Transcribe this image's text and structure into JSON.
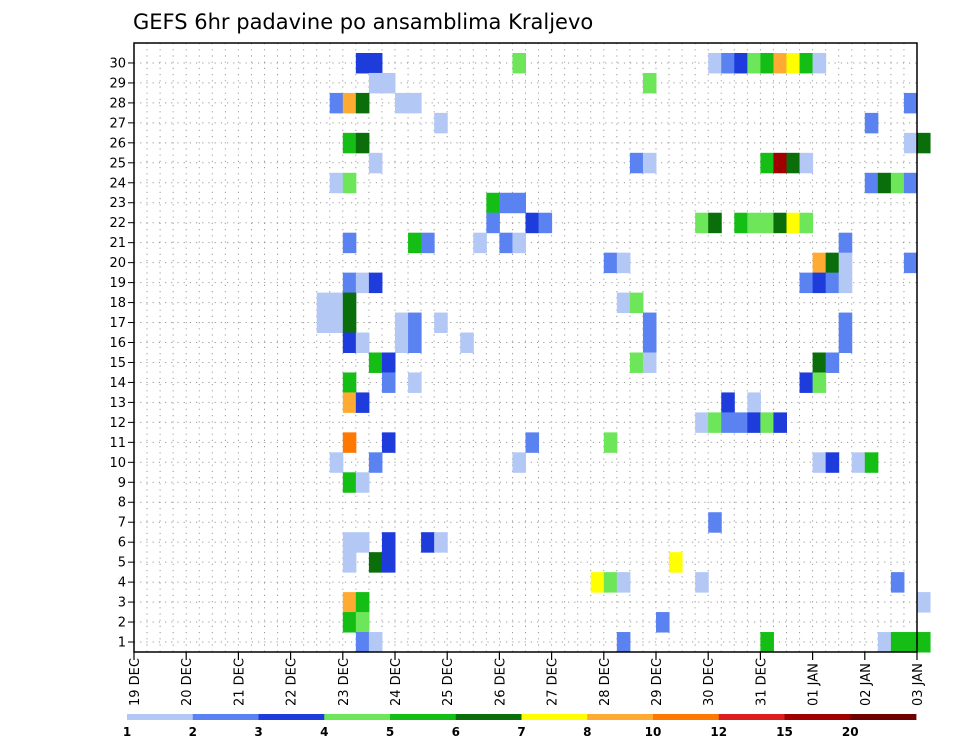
{
  "chart_data": {
    "type": "heatmap",
    "title": "GEFS 6hr padavine po ansamblima Kraljevo",
    "xlabel": "",
    "ylabel": "",
    "x_tick_labels": [
      "19 DEC",
      "20 DEC",
      "21 DEC",
      "22 DEC",
      "23 DEC",
      "24 DEC",
      "25 DEC",
      "26 DEC",
      "27 DEC",
      "28 DEC",
      "29 DEC",
      "30 DEC",
      "31 DEC",
      "01 JAN",
      "02 JAN",
      "03 JAN"
    ],
    "y_tick_labels": [
      "1",
      "2",
      "3",
      "4",
      "5",
      "6",
      "7",
      "8",
      "9",
      "10",
      "11",
      "12",
      "13",
      "14",
      "15",
      "16",
      "17",
      "18",
      "19",
      "20",
      "21",
      "22",
      "23",
      "24",
      "25",
      "26",
      "27",
      "28",
      "29",
      "30"
    ],
    "x_range_days": [
      0,
      15
    ],
    "y_range": [
      0.5,
      30.5
    ],
    "time_step_hours": 6,
    "grid": "dotted",
    "legend": {
      "position": "bottom",
      "breaks": [
        1,
        2,
        3,
        4,
        5,
        6,
        7,
        8,
        10,
        12,
        15,
        20
      ],
      "colors": [
        "#b4c8f5",
        "#5a82f0",
        "#1e3cdc",
        "#6ee65a",
        "#14be14",
        "#0a6e0a",
        "#ffff00",
        "#ffaa32",
        "#ff7800",
        "#dc1e1e",
        "#a00000",
        "#6e0000"
      ]
    },
    "cells": [
      {
        "member": 30,
        "time": "12-23 06",
        "cls": 3
      },
      {
        "member": 30,
        "time": "12-23 12",
        "cls": 3
      },
      {
        "member": 30,
        "time": "12-26 06",
        "cls": 4
      },
      {
        "member": 30,
        "time": "12-30 00",
        "cls": 1
      },
      {
        "member": 30,
        "time": "12-30 06",
        "cls": 2
      },
      {
        "member": 30,
        "time": "12-30 12",
        "cls": 3
      },
      {
        "member": 30,
        "time": "12-30 18",
        "cls": 4
      },
      {
        "member": 30,
        "time": "12-31 00",
        "cls": 5
      },
      {
        "member": 30,
        "time": "12-31 06",
        "cls": 8
      },
      {
        "member": 30,
        "time": "12-31 12",
        "cls": 7
      },
      {
        "member": 30,
        "time": "12-31 18",
        "cls": 5
      },
      {
        "member": 30,
        "time": "01-01 00",
        "cls": 1
      },
      {
        "member": 29,
        "time": "12-23 12",
        "cls": 1
      },
      {
        "member": 29,
        "time": "12-23 18",
        "cls": 1
      },
      {
        "member": 29,
        "time": "12-28 18",
        "cls": 4
      },
      {
        "member": 28,
        "time": "12-22 18",
        "cls": 2
      },
      {
        "member": 28,
        "time": "12-23 00",
        "cls": 8
      },
      {
        "member": 28,
        "time": "12-23 06",
        "cls": 6
      },
      {
        "member": 28,
        "time": "12-24 00",
        "cls": 1
      },
      {
        "member": 28,
        "time": "12-24 06",
        "cls": 1
      },
      {
        "member": 28,
        "time": "01-02 18",
        "cls": 2
      },
      {
        "member": 27,
        "time": "12-24 18",
        "cls": 1
      },
      {
        "member": 27,
        "time": "01-02 00",
        "cls": 2
      },
      {
        "member": 26,
        "time": "12-23 00",
        "cls": 5
      },
      {
        "member": 26,
        "time": "12-23 06",
        "cls": 6
      },
      {
        "member": 26,
        "time": "01-02 18",
        "cls": 1
      },
      {
        "member": 26,
        "time": "01-03 00",
        "cls": 6
      },
      {
        "member": 25,
        "time": "12-23 12",
        "cls": 1
      },
      {
        "member": 25,
        "time": "12-28 12",
        "cls": 2
      },
      {
        "member": 25,
        "time": "12-28 18",
        "cls": 1
      },
      {
        "member": 25,
        "time": "12-31 00",
        "cls": 5
      },
      {
        "member": 25,
        "time": "12-31 06",
        "cls": 11
      },
      {
        "member": 25,
        "time": "12-31 12",
        "cls": 6
      },
      {
        "member": 25,
        "time": "12-31 18",
        "cls": 1
      },
      {
        "member": 24,
        "time": "12-22 18",
        "cls": 1
      },
      {
        "member": 24,
        "time": "12-23 00",
        "cls": 4
      },
      {
        "member": 24,
        "time": "01-02 00",
        "cls": 2
      },
      {
        "member": 24,
        "time": "01-02 06",
        "cls": 6
      },
      {
        "member": 24,
        "time": "01-02 12",
        "cls": 4
      },
      {
        "member": 24,
        "time": "01-02 18",
        "cls": 2
      },
      {
        "member": 23,
        "time": "12-25 18",
        "cls": 5
      },
      {
        "member": 23,
        "time": "12-26 00",
        "cls": 2
      },
      {
        "member": 23,
        "time": "12-26 06",
        "cls": 2
      },
      {
        "member": 22,
        "time": "12-25 18",
        "cls": 2
      },
      {
        "member": 22,
        "time": "12-26 12",
        "cls": 3
      },
      {
        "member": 22,
        "time": "12-26 18",
        "cls": 2
      },
      {
        "member": 22,
        "time": "12-29 18",
        "cls": 4
      },
      {
        "member": 22,
        "time": "12-30 00",
        "cls": 6
      },
      {
        "member": 22,
        "time": "12-30 12",
        "cls": 5
      },
      {
        "member": 22,
        "time": "12-30 18",
        "cls": 4
      },
      {
        "member": 22,
        "time": "12-31 00",
        "cls": 4
      },
      {
        "member": 22,
        "time": "12-31 06",
        "cls": 6
      },
      {
        "member": 22,
        "time": "12-31 12",
        "cls": 7
      },
      {
        "member": 22,
        "time": "12-31 18",
        "cls": 4
      },
      {
        "member": 21,
        "time": "12-23 00",
        "cls": 2
      },
      {
        "member": 21,
        "time": "12-24 06",
        "cls": 5
      },
      {
        "member": 21,
        "time": "12-24 12",
        "cls": 2
      },
      {
        "member": 21,
        "time": "12-25 12",
        "cls": 1
      },
      {
        "member": 21,
        "time": "12-26 00",
        "cls": 2
      },
      {
        "member": 21,
        "time": "12-26 06",
        "cls": 1
      },
      {
        "member": 21,
        "time": "01-01 12",
        "cls": 2
      },
      {
        "member": 20,
        "time": "12-28 00",
        "cls": 2
      },
      {
        "member": 20,
        "time": "12-28 06",
        "cls": 1
      },
      {
        "member": 20,
        "time": "01-01 00",
        "cls": 8
      },
      {
        "member": 20,
        "time": "01-01 06",
        "cls": 6
      },
      {
        "member": 20,
        "time": "01-01 12",
        "cls": 1
      },
      {
        "member": 20,
        "time": "01-02 18",
        "cls": 2
      },
      {
        "member": 19,
        "time": "12-23 00",
        "cls": 2
      },
      {
        "member": 19,
        "time": "12-23 06",
        "cls": 1
      },
      {
        "member": 19,
        "time": "12-23 12",
        "cls": 3
      },
      {
        "member": 19,
        "time": "12-31 18",
        "cls": 2
      },
      {
        "member": 19,
        "time": "01-01 00",
        "cls": 3
      },
      {
        "member": 19,
        "time": "01-01 06",
        "cls": 2
      },
      {
        "member": 19,
        "time": "01-01 12",
        "cls": 1
      },
      {
        "member": 18,
        "time": "12-22 12",
        "cls": 1
      },
      {
        "member": 18,
        "time": "12-22 18",
        "cls": 1
      },
      {
        "member": 18,
        "time": "12-23 00",
        "cls": 6
      },
      {
        "member": 18,
        "time": "12-28 06",
        "cls": 1
      },
      {
        "member": 18,
        "time": "12-28 12",
        "cls": 4
      },
      {
        "member": 17,
        "time": "12-22 12",
        "cls": 1
      },
      {
        "member": 17,
        "time": "12-22 18",
        "cls": 1
      },
      {
        "member": 17,
        "time": "12-23 00",
        "cls": 6
      },
      {
        "member": 17,
        "time": "12-24 00",
        "cls": 1
      },
      {
        "member": 17,
        "time": "12-24 06",
        "cls": 2
      },
      {
        "member": 17,
        "time": "12-24 18",
        "cls": 1
      },
      {
        "member": 17,
        "time": "12-28 18",
        "cls": 2
      },
      {
        "member": 17,
        "time": "01-01 12",
        "cls": 2
      },
      {
        "member": 16,
        "time": "12-23 00",
        "cls": 3
      },
      {
        "member": 16,
        "time": "12-23 06",
        "cls": 1
      },
      {
        "member": 16,
        "time": "12-24 00",
        "cls": 1
      },
      {
        "member": 16,
        "time": "12-24 06",
        "cls": 2
      },
      {
        "member": 16,
        "time": "12-25 06",
        "cls": 1
      },
      {
        "member": 16,
        "time": "12-28 18",
        "cls": 2
      },
      {
        "member": 16,
        "time": "01-01 12",
        "cls": 2
      },
      {
        "member": 15,
        "time": "12-23 12",
        "cls": 5
      },
      {
        "member": 15,
        "time": "12-23 18",
        "cls": 3
      },
      {
        "member": 15,
        "time": "12-28 12",
        "cls": 4
      },
      {
        "member": 15,
        "time": "12-28 18",
        "cls": 1
      },
      {
        "member": 15,
        "time": "01-01 00",
        "cls": 6
      },
      {
        "member": 15,
        "time": "01-01 06",
        "cls": 2
      },
      {
        "member": 14,
        "time": "12-23 00",
        "cls": 5
      },
      {
        "member": 14,
        "time": "12-23 18",
        "cls": 2
      },
      {
        "member": 14,
        "time": "12-24 06",
        "cls": 1
      },
      {
        "member": 14,
        "time": "12-31 18",
        "cls": 3
      },
      {
        "member": 14,
        "time": "01-01 00",
        "cls": 4
      },
      {
        "member": 13,
        "time": "12-23 00",
        "cls": 8
      },
      {
        "member": 13,
        "time": "12-23 06",
        "cls": 3
      },
      {
        "member": 13,
        "time": "12-30 06",
        "cls": 3
      },
      {
        "member": 13,
        "time": "12-30 18",
        "cls": 1
      },
      {
        "member": 12,
        "time": "12-29 18",
        "cls": 1
      },
      {
        "member": 12,
        "time": "12-30 00",
        "cls": 4
      },
      {
        "member": 12,
        "time": "12-30 06",
        "cls": 2
      },
      {
        "member": 12,
        "time": "12-30 12",
        "cls": 2
      },
      {
        "member": 12,
        "time": "12-30 18",
        "cls": 3
      },
      {
        "member": 12,
        "time": "12-31 00",
        "cls": 4
      },
      {
        "member": 12,
        "time": "12-31 06",
        "cls": 3
      },
      {
        "member": 11,
        "time": "12-23 00",
        "cls": 9
      },
      {
        "member": 11,
        "time": "12-23 18",
        "cls": 3
      },
      {
        "member": 11,
        "time": "12-26 12",
        "cls": 2
      },
      {
        "member": 11,
        "time": "12-28 00",
        "cls": 4
      },
      {
        "member": 10,
        "time": "12-22 18",
        "cls": 1
      },
      {
        "member": 10,
        "time": "12-23 12",
        "cls": 2
      },
      {
        "member": 10,
        "time": "12-26 06",
        "cls": 1
      },
      {
        "member": 10,
        "time": "01-01 00",
        "cls": 1
      },
      {
        "member": 10,
        "time": "01-01 06",
        "cls": 3
      },
      {
        "member": 10,
        "time": "01-01 18",
        "cls": 1
      },
      {
        "member": 10,
        "time": "01-02 00",
        "cls": 5
      },
      {
        "member": 9,
        "time": "12-23 00",
        "cls": 5
      },
      {
        "member": 9,
        "time": "12-23 06",
        "cls": 1
      },
      {
        "member": 7,
        "time": "12-30 00",
        "cls": 2
      },
      {
        "member": 6,
        "time": "12-23 00",
        "cls": 1
      },
      {
        "member": 6,
        "time": "12-23 06",
        "cls": 1
      },
      {
        "member": 6,
        "time": "12-23 18",
        "cls": 3
      },
      {
        "member": 6,
        "time": "12-24 12",
        "cls": 3
      },
      {
        "member": 6,
        "time": "12-24 18",
        "cls": 1
      },
      {
        "member": 5,
        "time": "12-23 00",
        "cls": 1
      },
      {
        "member": 5,
        "time": "12-23 12",
        "cls": 6
      },
      {
        "member": 5,
        "time": "12-23 18",
        "cls": 3
      },
      {
        "member": 5,
        "time": "12-29 06",
        "cls": 7
      },
      {
        "member": 4,
        "time": "12-27 18",
        "cls": 7
      },
      {
        "member": 4,
        "time": "12-28 00",
        "cls": 4
      },
      {
        "member": 4,
        "time": "12-28 06",
        "cls": 1
      },
      {
        "member": 4,
        "time": "12-29 18",
        "cls": 1
      },
      {
        "member": 4,
        "time": "01-02 12",
        "cls": 2
      },
      {
        "member": 3,
        "time": "12-23 00",
        "cls": 8
      },
      {
        "member": 3,
        "time": "12-23 06",
        "cls": 5
      },
      {
        "member": 3,
        "time": "01-03 00",
        "cls": 1
      },
      {
        "member": 2,
        "time": "12-23 00",
        "cls": 5
      },
      {
        "member": 2,
        "time": "12-23 06",
        "cls": 4
      },
      {
        "member": 2,
        "time": "12-29 00",
        "cls": 2
      },
      {
        "member": 1,
        "time": "12-23 06",
        "cls": 2
      },
      {
        "member": 1,
        "time": "12-23 12",
        "cls": 1
      },
      {
        "member": 1,
        "time": "12-28 06",
        "cls": 2
      },
      {
        "member": 1,
        "time": "12-31 00",
        "cls": 5
      },
      {
        "member": 1,
        "time": "01-02 06",
        "cls": 1
      },
      {
        "member": 1,
        "time": "01-02 12",
        "cls": 5
      },
      {
        "member": 1,
        "time": "01-02 18",
        "cls": 5
      },
      {
        "member": 1,
        "time": "01-03 00",
        "cls": 5
      }
    ]
  }
}
